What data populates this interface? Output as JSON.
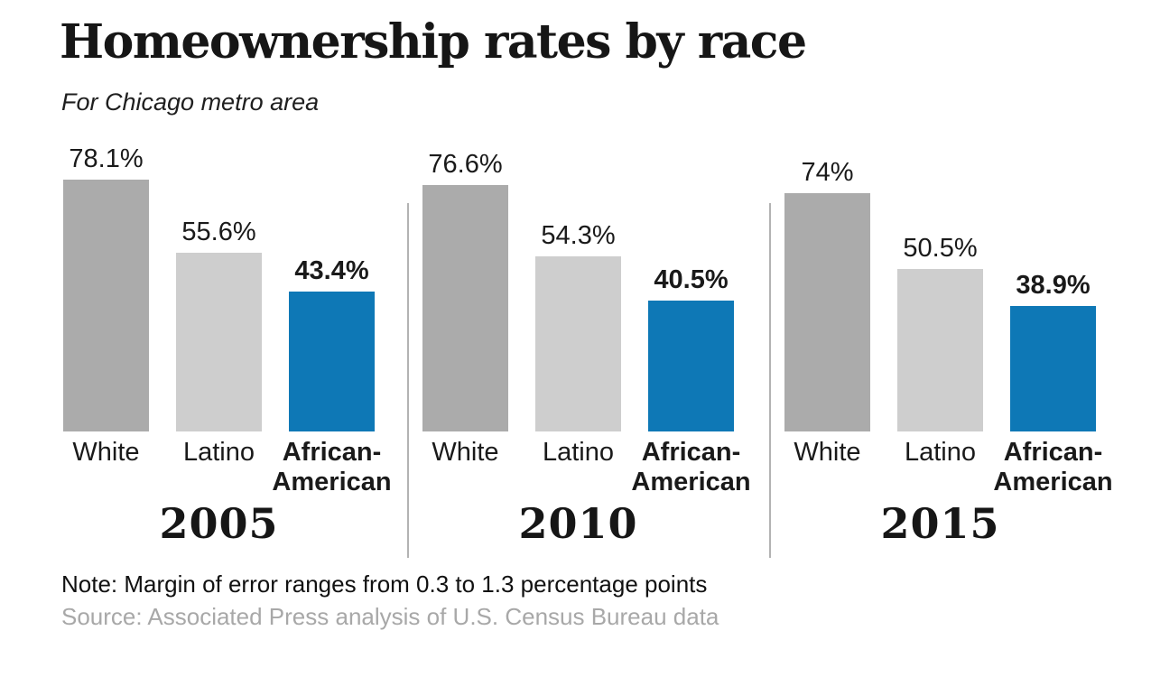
{
  "header": {
    "title": "Homeownership rates by race",
    "subtitle": "For Chicago metro area"
  },
  "chart_data": {
    "type": "bar",
    "title": "Homeownership rates by race",
    "subtitle": "For Chicago metro area",
    "unit": "percent",
    "ylim": [
      0,
      80
    ],
    "grid": false,
    "legend": "none",
    "categories": [
      "White",
      "Latino",
      "African-American"
    ],
    "categories_display": [
      "White",
      "Latino",
      "African-\nAmerican"
    ],
    "category_bold": [
      false,
      false,
      true
    ],
    "groups": [
      {
        "year": "2005",
        "values": [
          78.1,
          55.6,
          43.4
        ],
        "labels": [
          "78.1%",
          "55.6%",
          "43.4%"
        ]
      },
      {
        "year": "2010",
        "values": [
          76.6,
          54.3,
          40.5
        ],
        "labels": [
          "76.6%",
          "54.3%",
          "40.5%"
        ]
      },
      {
        "year": "2015",
        "values": [
          74,
          50.5,
          38.9
        ],
        "labels": [
          "74%",
          "50.5%",
          "38.9%"
        ]
      }
    ],
    "colors": {
      "white_bar": "#ababab",
      "latino_bar": "#cecece",
      "african_american_bar": "#0e78b6"
    }
  },
  "footer": {
    "note": "Note: Margin of error ranges from 0.3 to 1.3 percentage points",
    "source": "Source: Associated Press analysis of U.S. Census Bureau data"
  }
}
